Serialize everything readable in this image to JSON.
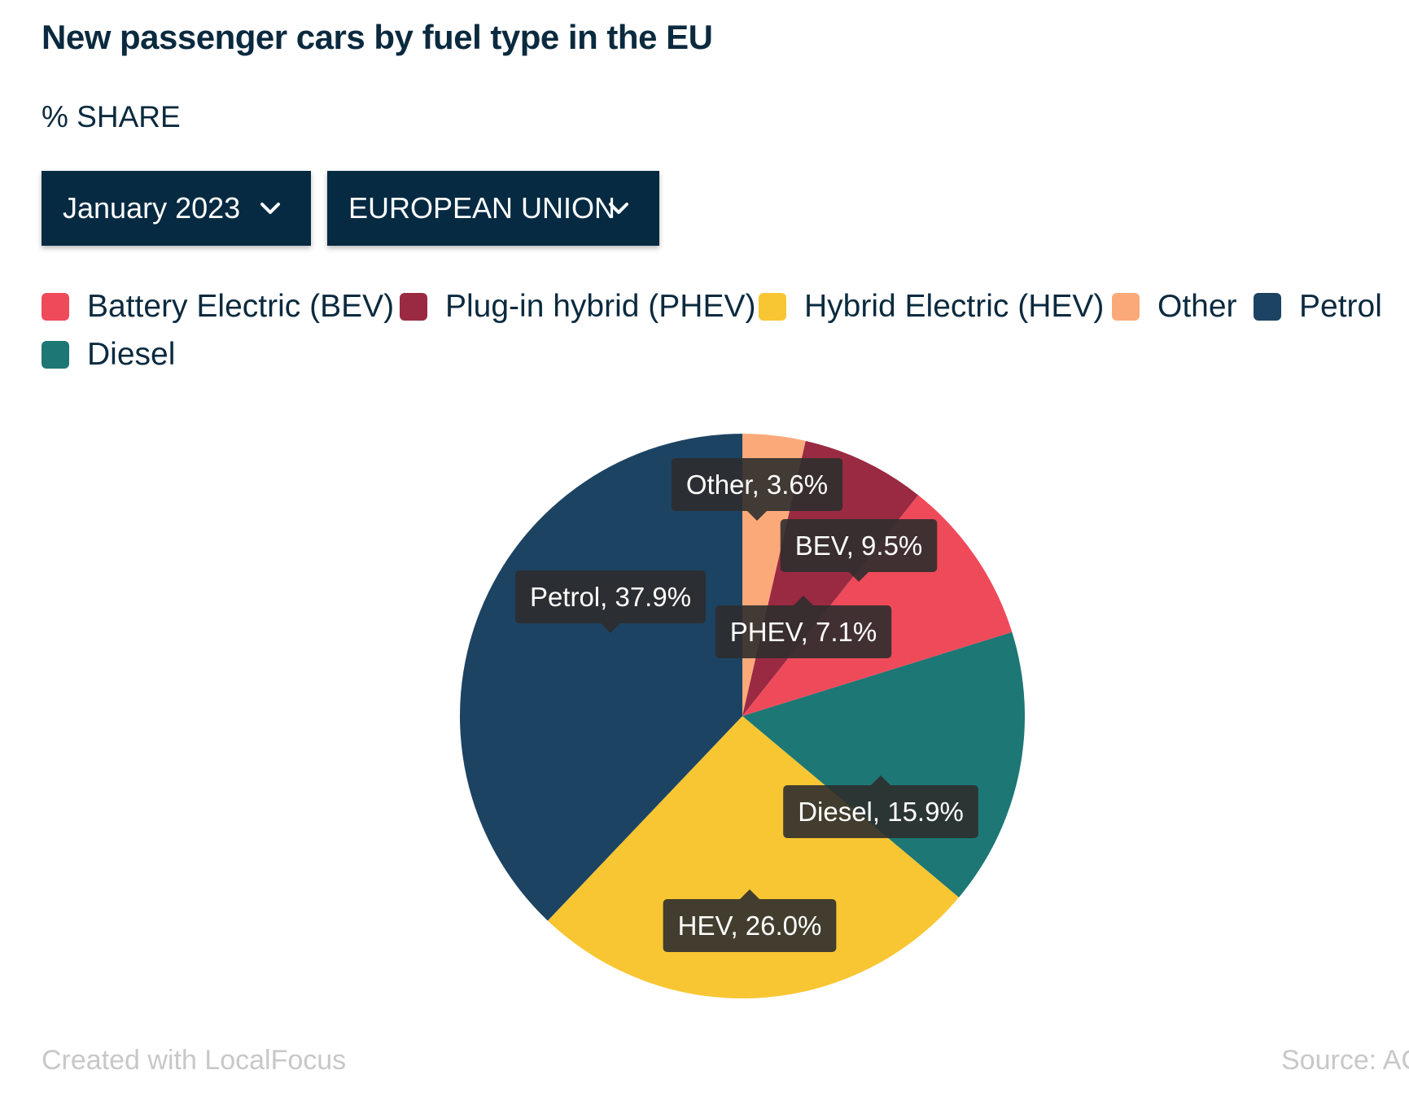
{
  "header": {
    "title": "New passenger cars by fuel type in the EU",
    "subtitle": "% SHARE"
  },
  "filters": {
    "month": "January 2023",
    "region": "EUROPEAN UNION"
  },
  "legend": [
    {
      "label": "Battery Electric (BEV)",
      "color": "#ef4a5a"
    },
    {
      "label": "Plug-in hybrid (PHEV)",
      "color": "#9a2a42"
    },
    {
      "label": "Hybrid Electric (HEV)",
      "color": "#f8c632"
    },
    {
      "label": "Other",
      "color": "#fca97a"
    },
    {
      "label": "Petrol",
      "color": "#1d4363"
    },
    {
      "label": "Diesel",
      "color": "#1d7775"
    }
  ],
  "chart_data": {
    "type": "pie",
    "slices": [
      {
        "name": "Other",
        "value": 3.6,
        "label": "Other, 3.6%",
        "color": "#fca97a"
      },
      {
        "name": "PHEV",
        "value": 7.1,
        "label": "PHEV, 7.1%",
        "color": "#9a2a42"
      },
      {
        "name": "BEV",
        "value": 9.5,
        "label": "BEV, 9.5%",
        "color": "#ef4a5a"
      },
      {
        "name": "Diesel",
        "value": 15.9,
        "label": "Diesel, 15.9%",
        "color": "#1d7775"
      },
      {
        "name": "HEV",
        "value": 26.0,
        "label": "HEV, 26.0%",
        "color": "#f8c632"
      },
      {
        "name": "Petrol",
        "value": 37.9,
        "label": "Petrol, 37.9%",
        "color": "#1d4363"
      }
    ]
  },
  "footer": {
    "credit": "Created with LocalFocus",
    "source": "Source: ACEA"
  }
}
